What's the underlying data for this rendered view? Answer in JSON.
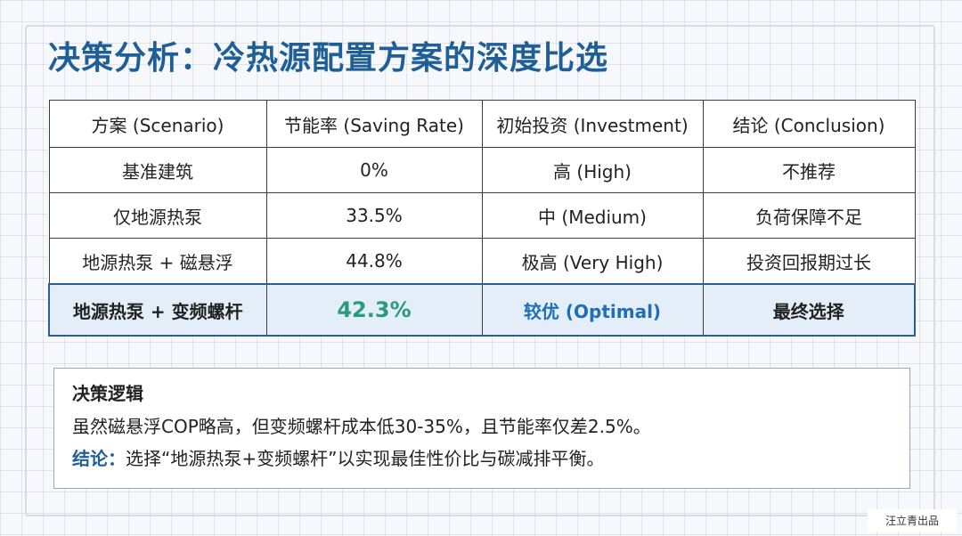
{
  "page": {
    "title": "决策分析：冷热源配置方案的深度比选",
    "colors": {
      "title": "#1f5f96",
      "highlight_bg": "#e3eef9",
      "highlight_rate": "#2a9a7c",
      "highlight_investment": "#1f6fb5"
    }
  },
  "table": {
    "headers": [
      "方案 (Scenario)",
      "节能率 (Saving Rate)",
      "初始投资 (Investment)",
      "结论 (Conclusion)"
    ],
    "rows": [
      [
        "基准建筑",
        "0%",
        "高 (High)",
        "不推荐"
      ],
      [
        "仅地源热泵",
        "33.5%",
        "中 (Medium)",
        "负荷保障不足"
      ],
      [
        "地源热泵 + 磁悬浮",
        "44.8%",
        "极高 (Very High)",
        "投资回报期过长"
      ],
      [
        "地源热泵 + 变频螺杆",
        "42.3%",
        "较优 (Optimal)",
        "最终选择"
      ]
    ],
    "highlighted_row": 3
  },
  "logic": {
    "heading": "决策逻辑",
    "line1": "虽然磁悬浮COP略高，但变频螺杆成本低30-35%，且节能率仅差2.5%。",
    "conclusion_label": "结论：",
    "conclusion_text": "选择“地源热泵+变频螺杆”以实现最佳性价比与碳减排平衡。"
  },
  "watermark": "汪立青出品"
}
